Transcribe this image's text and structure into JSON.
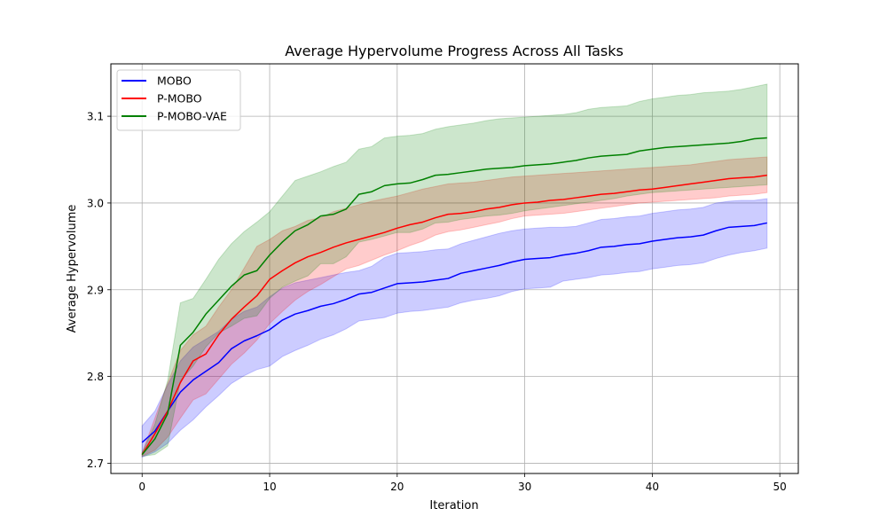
{
  "chart_data": {
    "type": "line",
    "title": "Average Hypervolume Progress Across All Tasks",
    "xlabel": "Iteration",
    "ylabel": "Average Hypervolume",
    "xlim": [
      -2.45,
      51.45
    ],
    "ylim": [
      2.6882,
      3.1604
    ],
    "xticks": [
      0,
      10,
      20,
      30,
      40,
      50
    ],
    "yticks": [
      2.7,
      2.8,
      2.9,
      3.0,
      3.1
    ],
    "ytick_labels": [
      "2.7",
      "2.8",
      "2.9",
      "3.0",
      "3.1"
    ],
    "grid": true,
    "legend_position": "top-left",
    "x": [
      0,
      1,
      2,
      3,
      4,
      5,
      6,
      7,
      8,
      9,
      10,
      11,
      12,
      13,
      14,
      15,
      16,
      17,
      18,
      19,
      20,
      21,
      22,
      23,
      24,
      25,
      26,
      27,
      28,
      29,
      30,
      31,
      32,
      33,
      34,
      35,
      36,
      37,
      38,
      39,
      40,
      41,
      42,
      43,
      44,
      45,
      46,
      47,
      48,
      49
    ],
    "series": [
      {
        "name": "MOBO",
        "color": "#0000ff",
        "values": [
          2.724,
          2.737,
          2.76,
          2.782,
          2.796,
          2.806,
          2.816,
          2.832,
          2.841,
          2.847,
          2.854,
          2.865,
          2.872,
          2.876,
          2.881,
          2.884,
          2.889,
          2.895,
          2.897,
          2.902,
          2.907,
          2.908,
          2.909,
          2.911,
          2.913,
          2.919,
          2.922,
          2.925,
          2.928,
          2.932,
          2.935,
          2.936,
          2.937,
          2.94,
          2.942,
          2.945,
          2.949,
          2.95,
          2.952,
          2.953,
          2.956,
          2.958,
          2.96,
          2.961,
          2.963,
          2.968,
          2.972,
          2.973,
          2.974,
          2.977
        ],
        "lower": [
          2.707,
          2.713,
          2.723,
          2.738,
          2.75,
          2.765,
          2.778,
          2.792,
          2.801,
          2.808,
          2.812,
          2.823,
          2.83,
          2.836,
          2.843,
          2.848,
          2.855,
          2.864,
          2.866,
          2.868,
          2.873,
          2.875,
          2.876,
          2.878,
          2.88,
          2.885,
          2.888,
          2.89,
          2.893,
          2.898,
          2.901,
          2.902,
          2.903,
          2.91,
          2.912,
          2.914,
          2.917,
          2.918,
          2.92,
          2.921,
          2.924,
          2.926,
          2.928,
          2.929,
          2.931,
          2.936,
          2.94,
          2.943,
          2.945,
          2.948
        ],
        "upper": [
          2.743,
          2.76,
          2.79,
          2.818,
          2.834,
          2.843,
          2.852,
          2.866,
          2.875,
          2.88,
          2.892,
          2.902,
          2.908,
          2.911,
          2.914,
          2.917,
          2.92,
          2.922,
          2.927,
          2.937,
          2.942,
          2.943,
          2.944,
          2.946,
          2.947,
          2.953,
          2.957,
          2.961,
          2.965,
          2.968,
          2.97,
          2.971,
          2.972,
          2.972,
          2.973,
          2.977,
          2.981,
          2.982,
          2.984,
          2.985,
          2.988,
          2.99,
          2.992,
          2.993,
          2.995,
          3.0,
          3.002,
          3.003,
          3.003,
          3.005
        ]
      },
      {
        "name": "P-MOBO",
        "color": "#ff0000",
        "values": [
          2.71,
          2.734,
          2.76,
          2.793,
          2.818,
          2.826,
          2.848,
          2.866,
          2.88,
          2.893,
          2.912,
          2.922,
          2.931,
          2.938,
          2.943,
          2.949,
          2.954,
          2.958,
          2.962,
          2.966,
          2.971,
          2.975,
          2.978,
          2.983,
          2.987,
          2.988,
          2.99,
          2.993,
          2.995,
          2.998,
          3.0,
          3.001,
          3.003,
          3.004,
          3.006,
          3.008,
          3.01,
          3.011,
          3.013,
          3.015,
          3.016,
          3.018,
          3.02,
          3.022,
          3.024,
          3.026,
          3.028,
          3.029,
          3.03,
          3.032
        ],
        "lower": [
          2.708,
          2.715,
          2.73,
          2.752,
          2.773,
          2.78,
          2.797,
          2.814,
          2.827,
          2.842,
          2.861,
          2.875,
          2.888,
          2.898,
          2.906,
          2.915,
          2.924,
          2.928,
          2.934,
          2.94,
          2.945,
          2.951,
          2.956,
          2.963,
          2.967,
          2.969,
          2.972,
          2.975,
          2.978,
          2.982,
          2.985,
          2.986,
          2.987,
          2.988,
          2.99,
          2.992,
          2.994,
          2.996,
          2.998,
          3.0,
          3.001,
          3.002,
          3.003,
          3.004,
          3.005,
          3.006,
          3.008,
          3.009,
          3.01,
          3.012
        ],
        "upper": [
          2.712,
          2.752,
          2.792,
          2.83,
          2.848,
          2.858,
          2.88,
          2.9,
          2.925,
          2.95,
          2.958,
          2.968,
          2.973,
          2.98,
          2.983,
          2.99,
          2.994,
          2.998,
          3.002,
          3.005,
          3.008,
          3.012,
          3.016,
          3.019,
          3.022,
          3.023,
          3.024,
          3.026,
          3.028,
          3.03,
          3.031,
          3.032,
          3.033,
          3.034,
          3.035,
          3.036,
          3.037,
          3.038,
          3.039,
          3.04,
          3.041,
          3.042,
          3.043,
          3.044,
          3.046,
          3.048,
          3.05,
          3.051,
          3.052,
          3.053
        ]
      },
      {
        "name": "P-MOBO-VAE",
        "color": "#008000",
        "values": [
          2.71,
          2.728,
          2.757,
          2.836,
          2.851,
          2.872,
          2.888,
          2.904,
          2.917,
          2.922,
          2.94,
          2.955,
          2.968,
          2.975,
          2.985,
          2.987,
          2.993,
          3.01,
          3.013,
          3.02,
          3.022,
          3.023,
          3.027,
          3.032,
          3.033,
          3.035,
          3.037,
          3.039,
          3.04,
          3.041,
          3.043,
          3.044,
          3.045,
          3.047,
          3.049,
          3.052,
          3.054,
          3.055,
          3.056,
          3.06,
          3.062,
          3.064,
          3.065,
          3.066,
          3.067,
          3.068,
          3.069,
          3.071,
          3.074,
          3.075
        ],
        "lower": [
          2.708,
          2.71,
          2.72,
          2.795,
          2.812,
          2.834,
          2.85,
          2.858,
          2.867,
          2.87,
          2.89,
          2.903,
          2.91,
          2.916,
          2.93,
          2.93,
          2.938,
          2.955,
          2.958,
          2.962,
          2.966,
          2.966,
          2.97,
          2.977,
          2.978,
          2.981,
          2.983,
          2.985,
          2.986,
          2.988,
          2.991,
          2.993,
          2.995,
          2.997,
          2.999,
          3.001,
          3.003,
          3.005,
          3.008,
          3.01,
          3.012,
          3.013,
          3.014,
          3.015,
          3.016,
          3.017,
          3.018,
          3.019,
          3.02,
          3.021
        ],
        "upper": [
          2.712,
          2.745,
          2.795,
          2.885,
          2.89,
          2.912,
          2.935,
          2.953,
          2.967,
          2.978,
          2.99,
          3.008,
          3.026,
          3.031,
          3.036,
          3.042,
          3.047,
          3.062,
          3.065,
          3.075,
          3.077,
          3.078,
          3.08,
          3.085,
          3.088,
          3.09,
          3.092,
          3.095,
          3.097,
          3.098,
          3.099,
          3.1,
          3.101,
          3.102,
          3.104,
          3.108,
          3.11,
          3.111,
          3.112,
          3.117,
          3.12,
          3.122,
          3.124,
          3.125,
          3.127,
          3.128,
          3.129,
          3.131,
          3.134,
          3.137
        ]
      }
    ]
  },
  "legend": {
    "items": [
      {
        "label": "MOBO",
        "color": "#0000ff"
      },
      {
        "label": "P-MOBO",
        "color": "#ff0000"
      },
      {
        "label": "P-MOBO-VAE",
        "color": "#008000"
      }
    ]
  }
}
